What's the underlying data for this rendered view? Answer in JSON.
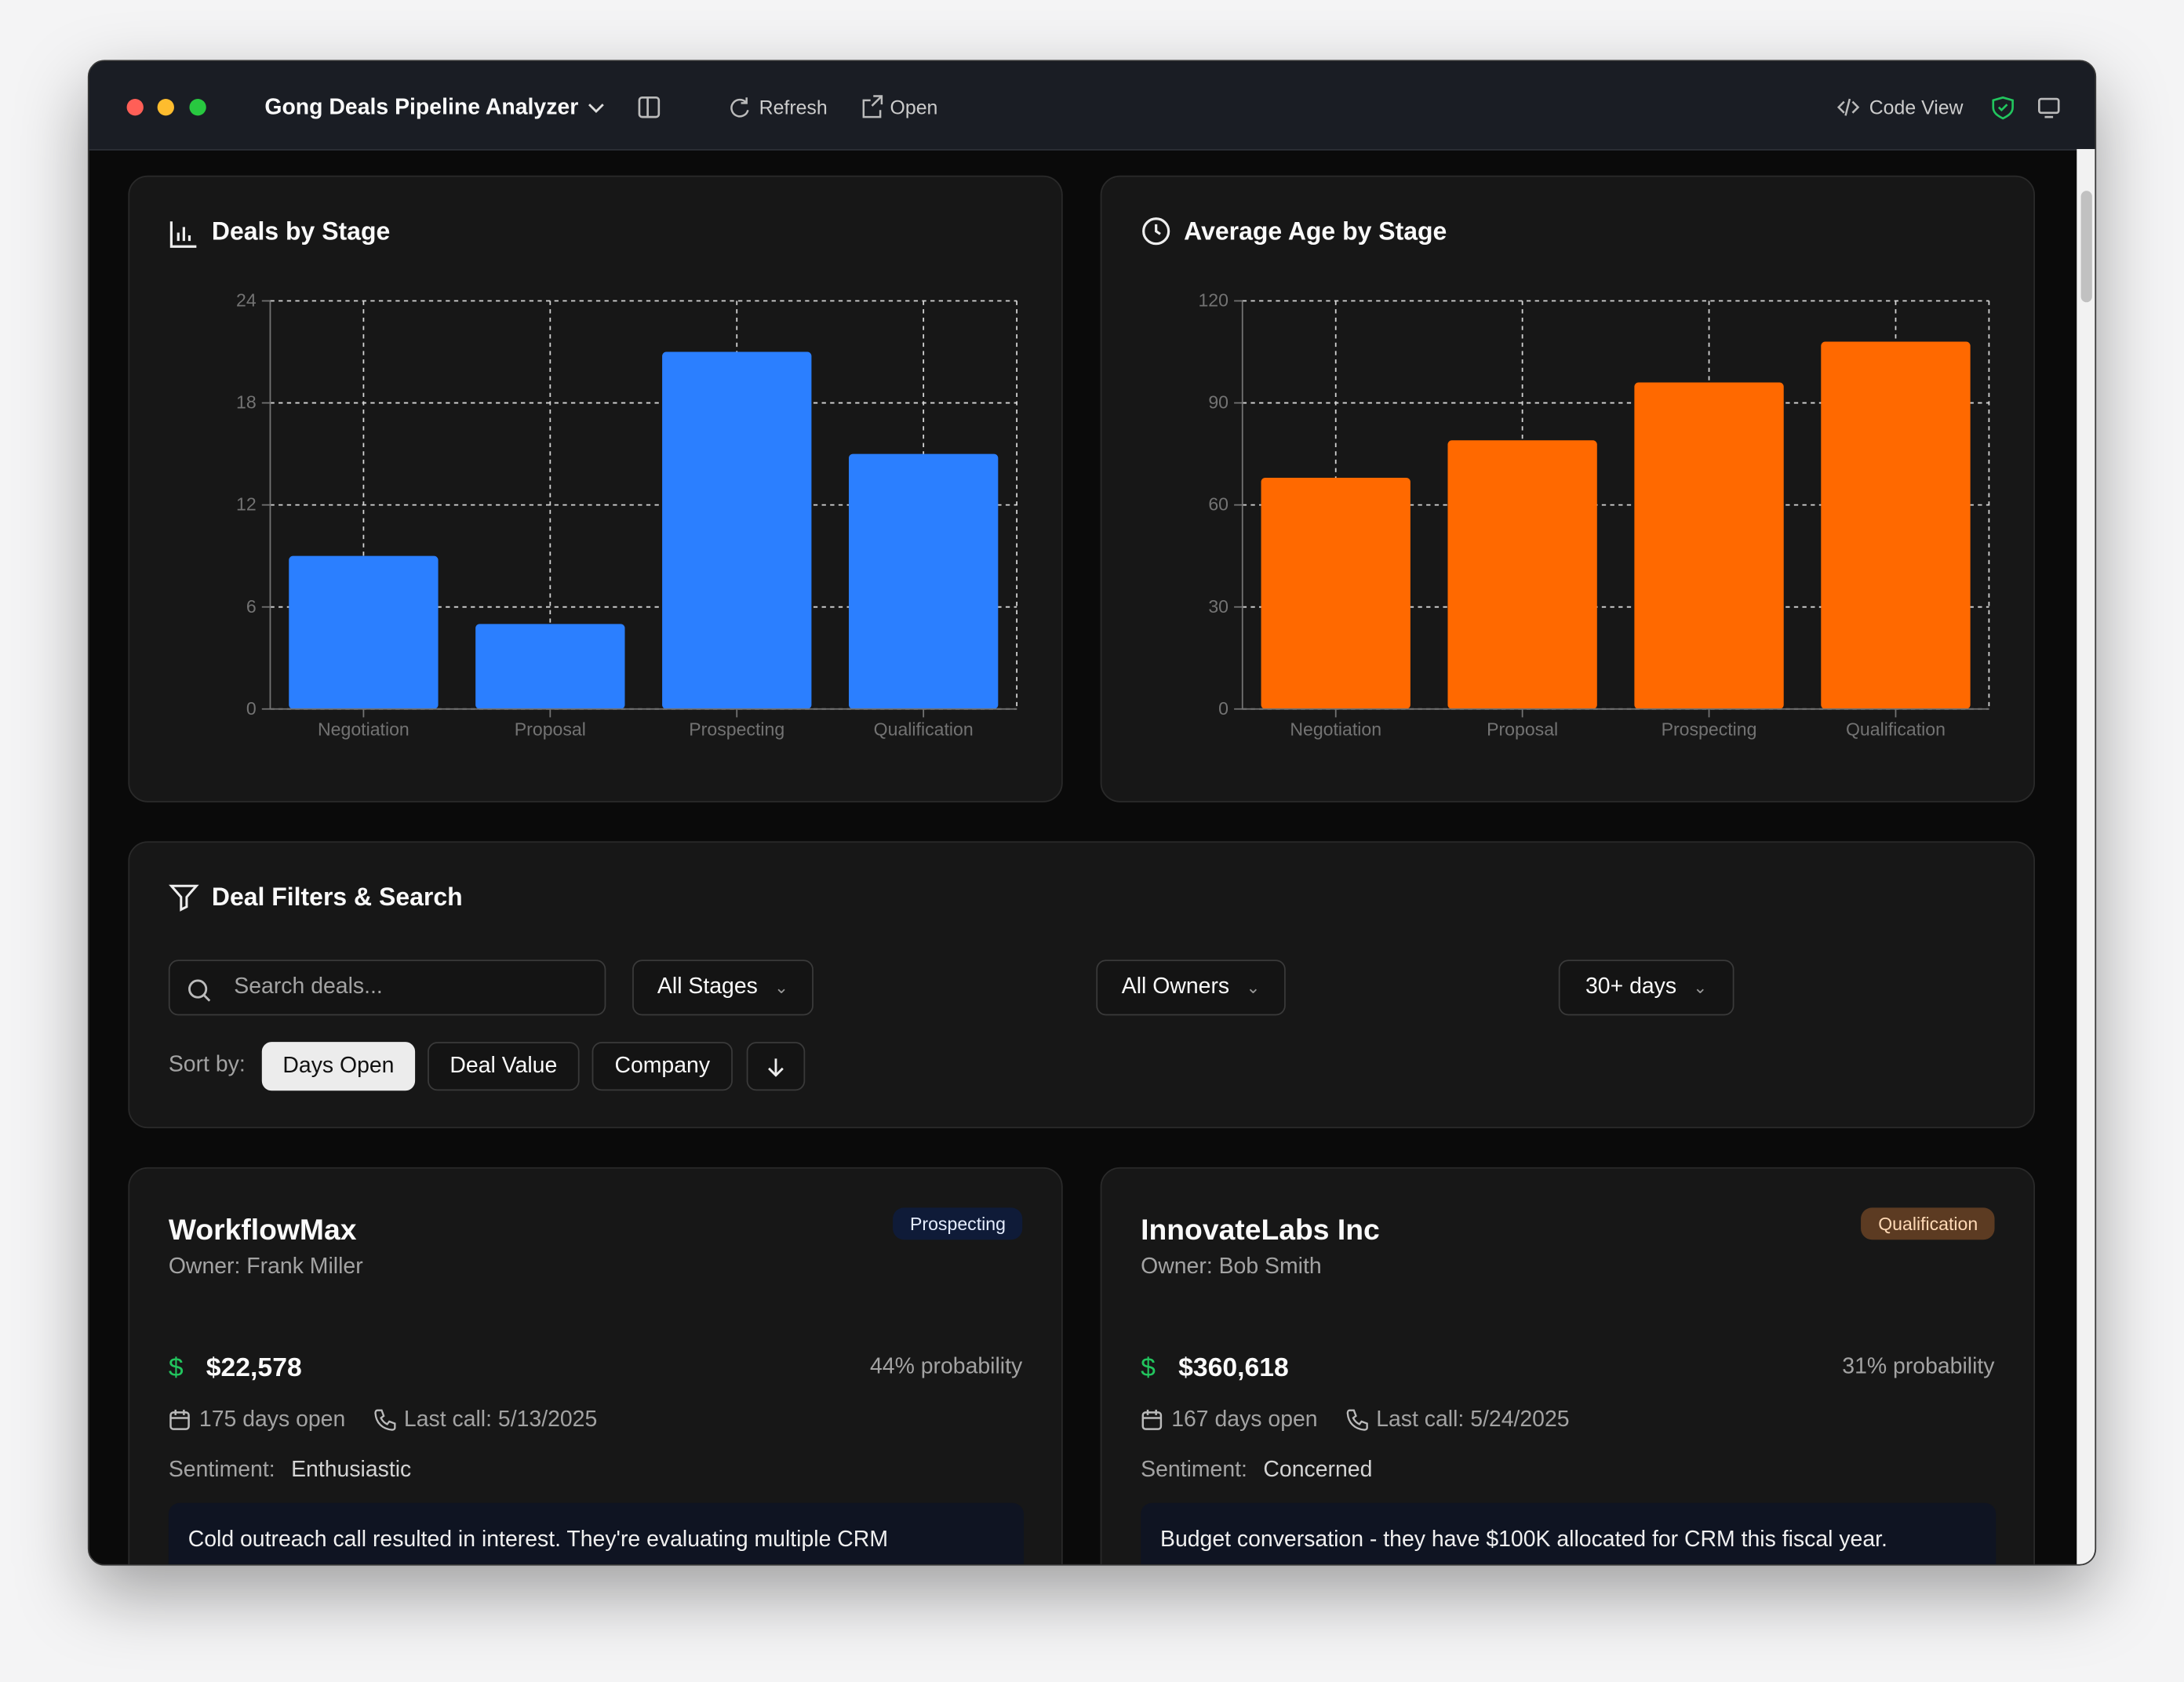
{
  "window": {
    "title": "Gong Deals Pipeline Analyzer",
    "actions": [
      "Refresh",
      "Open"
    ],
    "code_view": "Code View"
  },
  "chart_data": [
    {
      "type": "bar",
      "title": "Deals by Stage",
      "categories": [
        "Negotiation",
        "Proposal",
        "Prospecting",
        "Qualification"
      ],
      "values": [
        9,
        5,
        21,
        15
      ],
      "color": "#2b7fff",
      "ylim": [
        0,
        24
      ],
      "yticks": [
        0,
        6,
        12,
        18,
        24
      ],
      "grid": true
    },
    {
      "type": "bar",
      "title": "Average Age by Stage",
      "categories": [
        "Negotiation",
        "Proposal",
        "Prospecting",
        "Qualification"
      ],
      "values": [
        68,
        79,
        96,
        108
      ],
      "color": "#ff6900",
      "ylim": [
        0,
        120
      ],
      "yticks": [
        0,
        30,
        60,
        90,
        120
      ],
      "grid": true
    }
  ],
  "filters": {
    "title": "Deal Filters & Search",
    "search_placeholder": "Search deals...",
    "stage": "All Stages",
    "owner": "All Owners",
    "age": "30+ days",
    "sort_label": "Sort by:",
    "sort_options": [
      "Days Open",
      "Deal Value",
      "Company"
    ],
    "active_sort": 0
  },
  "deals": [
    {
      "name": "WorkflowMax",
      "stage": "Prospecting",
      "owner": "Owner: Frank Miller",
      "value": "$22,578",
      "probability": "44% probability",
      "days_open": "175 days open",
      "last_call": "Last call: 5/13/2025",
      "sentiment_label": "Sentiment:",
      "sentiment": "Enthusiastic",
      "note": "Cold outreach call resulted in interest. They're evaluating multiple CRM"
    },
    {
      "name": "InnovateLabs Inc",
      "stage": "Qualification",
      "owner": "Owner: Bob Smith",
      "value": "$360,618",
      "probability": "31% probability",
      "days_open": "167 days open",
      "last_call": "Last call: 5/24/2025",
      "sentiment_label": "Sentiment:",
      "sentiment": "Concerned",
      "note": "Budget conversation - they have $100K allocated for CRM this fiscal year."
    }
  ]
}
